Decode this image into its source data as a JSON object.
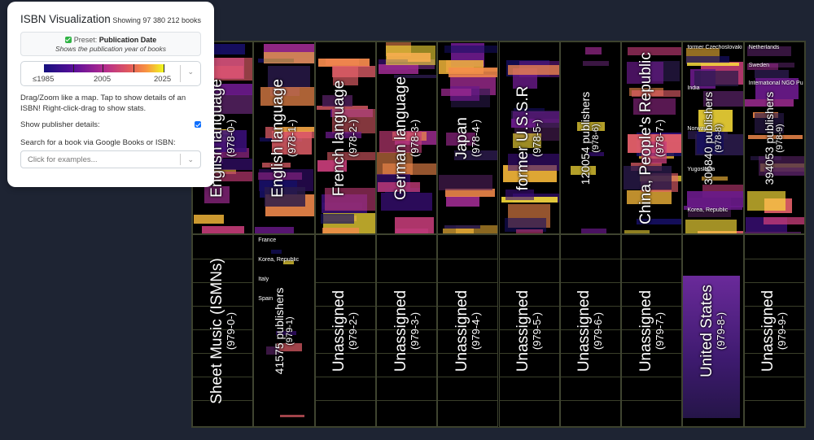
{
  "panel": {
    "title": "ISBN Visualization",
    "count": "Showing 97 380 212 books",
    "preset_prefix": "Preset: ",
    "preset_name": "Publication Date",
    "preset_desc": "Shows the publication year of books",
    "legend": {
      "min": "≤1985",
      "mid": "2005",
      "max": "2025"
    },
    "help": "Drag/Zoom like a map. Tap to show details of an ISBN! Right-click-drag to show stats.",
    "show_publisher_label": "Show publisher details:",
    "show_publisher_checked": true,
    "search_label": "Search for a book via Google Books or ISBN:",
    "search_placeholder": "Click for examples..."
  },
  "grid": {
    "top": [
      {
        "name": "English language",
        "code": "(978-0-)"
      },
      {
        "name": "English language",
        "code": "(978-1-)"
      },
      {
        "name": "French language",
        "code": "(978-2-)"
      },
      {
        "name": "German language",
        "code": "(978-3-)"
      },
      {
        "name": "Japan",
        "code": "(978-4-)"
      },
      {
        "name": "former U.S.S.R",
        "code": "(978-5-)"
      },
      {
        "name": "120054 publishers",
        "code": "(978-6)"
      },
      {
        "name": "China, People's Republic",
        "code": "(978-7-)"
      },
      {
        "name": "306840 publishers",
        "code": "(978-8)"
      },
      {
        "name": "394053 publishers",
        "code": "(978-9)"
      }
    ],
    "bottom": [
      {
        "name": "Sheet Music (ISMNs)",
        "code": "(979-0-)"
      },
      {
        "name": "41575 publishers",
        "code": "(979-1)"
      },
      {
        "name": "Unassigned",
        "code": "(979-2-)"
      },
      {
        "name": "Unassigned",
        "code": "(979-3-)"
      },
      {
        "name": "Unassigned",
        "code": "(979-4-)"
      },
      {
        "name": "Unassigned",
        "code": "(979-5-)"
      },
      {
        "name": "Unassigned",
        "code": "(979-6-)"
      },
      {
        "name": "Unassigned",
        "code": "(979-7-)"
      },
      {
        "name": "United States",
        "code": "(979-8-)"
      },
      {
        "name": "Unassigned",
        "code": "(979-9-)"
      }
    ],
    "countries_978_8": [
      "former Czechoslovakia",
      "India",
      "Norway",
      "Yugoslavia",
      "Korea, Republic"
    ],
    "countries_978_9": [
      "Netherlands",
      "Sweden",
      "International NGO Publishers and EU Organizations"
    ],
    "countries_979_1": [
      "France",
      "Korea, Republic",
      "Italy",
      "Spain"
    ]
  }
}
